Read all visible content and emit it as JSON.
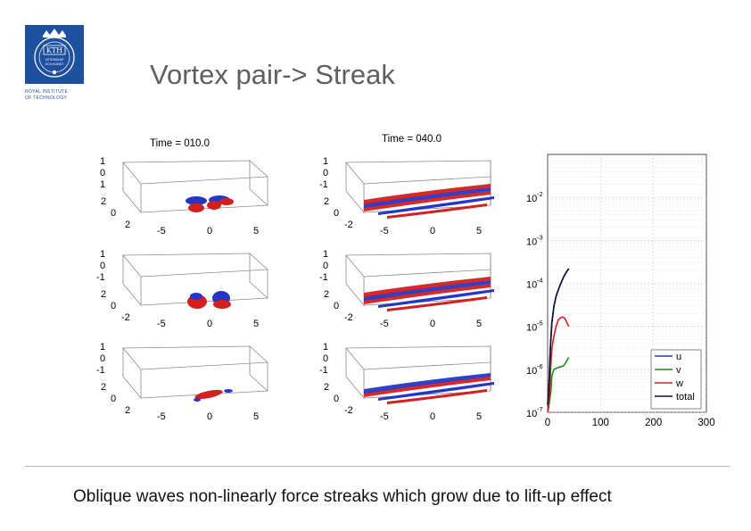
{
  "header": {
    "title": "Vortex pair-> Streak",
    "logo": {
      "abbr": "KTH",
      "seal_text": "VETENSKAP OCH KONST",
      "institute": "ROYAL INSTITUTE OF TECHNOLOGY",
      "color": "#1f4f9f"
    }
  },
  "figure": {
    "panels": [
      {
        "time_label": "Time = 010.0",
        "rows": [
          {
            "z_ticks": [
              "1",
              "0",
              "1"
            ],
            "y_ticks": [
              "2",
              "0",
              "2"
            ],
            "x_ticks": [
              "-5",
              "0",
              "5"
            ]
          },
          {
            "z_ticks": [
              "1",
              "0",
              "-1"
            ],
            "y_ticks": [
              "2",
              "0",
              "-2"
            ],
            "x_ticks": [
              "-5",
              "0",
              "5"
            ]
          },
          {
            "z_ticks": [
              "1",
              "0",
              "-1"
            ],
            "y_ticks": [
              "2",
              "0",
              "2"
            ],
            "x_ticks": [
              "-5",
              "0",
              "5"
            ]
          }
        ]
      },
      {
        "time_label": "Time = 040.0",
        "rows": [
          {
            "z_ticks": [
              "1",
              "0",
              "-1"
            ],
            "y_ticks": [
              "2",
              "0",
              "-2"
            ],
            "x_ticks": [
              "-5",
              "0",
              "5"
            ]
          },
          {
            "z_ticks": [
              "1",
              "0",
              "-1"
            ],
            "y_ticks": [
              "2",
              "0",
              "-2"
            ],
            "x_ticks": [
              "-5",
              "0",
              "5"
            ]
          },
          {
            "z_ticks": [
              "1",
              "0",
              "-1"
            ],
            "y_ticks": [
              "2",
              "0",
              "-2"
            ],
            "x_ticks": [
              "-5",
              "0",
              "5"
            ]
          }
        ]
      }
    ],
    "colors": {
      "red_isosurface": "#d41f1f",
      "blue_isosurface": "#2437c8"
    }
  },
  "chart_data": {
    "type": "line",
    "yscale": "log",
    "xlim": [
      0,
      300
    ],
    "ylim": [
      1e-07,
      0.1
    ],
    "x_ticks": [
      "0",
      "100",
      "200",
      "300"
    ],
    "y_ticks": [
      {
        "base": "10",
        "exp": "-2",
        "value": 0.01
      },
      {
        "base": "10",
        "exp": "-3",
        "value": 0.001
      },
      {
        "base": "10",
        "exp": "-4",
        "value": 0.0001
      },
      {
        "base": "10",
        "exp": "-5",
        "value": 1e-05
      },
      {
        "base": "10",
        "exp": "-6",
        "value": 1e-06
      },
      {
        "base": "10",
        "exp": "-7",
        "value": 1e-07
      }
    ],
    "grid": true,
    "legend_position": "bottom-right",
    "series": [
      {
        "name": "u",
        "color": "#1a3fb5",
        "x": [
          0,
          2,
          5,
          8,
          12,
          16,
          20,
          25,
          30,
          35,
          40
        ],
        "y": [
          1.5e-07,
          3e-07,
          3e-06,
          1.2e-05,
          3e-05,
          5e-05,
          7e-05,
          0.0001,
          0.00014,
          0.00018,
          0.00022
        ]
      },
      {
        "name": "v",
        "color": "#1b8a1b",
        "x": [
          0,
          2,
          4,
          6,
          8,
          12,
          20,
          30,
          35,
          40
        ],
        "y": [
          1e-07,
          1.3e-07,
          2e-07,
          3e-07,
          7e-07,
          1e-06,
          1.1e-06,
          1.2e-06,
          1.5e-06,
          1.9e-06
        ]
      },
      {
        "name": "w",
        "color": "#d42020",
        "x": [
          0,
          2,
          4,
          6,
          8,
          12,
          16,
          20,
          25,
          28,
          32,
          36,
          40
        ],
        "y": [
          1e-07,
          1.5e-07,
          4e-07,
          1.3e-06,
          3e-06,
          6e-06,
          1e-05,
          1.4e-05,
          1.6e-05,
          1.65e-05,
          1.55e-05,
          1.25e-05,
          1e-05
        ]
      },
      {
        "name": "total",
        "color": "#101030",
        "x": [
          0,
          2,
          5,
          8,
          12,
          16,
          20,
          25,
          30,
          35,
          40
        ],
        "y": [
          1.5e-07,
          3e-07,
          3e-06,
          1.2e-05,
          3e-05,
          5e-05,
          7e-05,
          0.0001,
          0.00014,
          0.00018,
          0.00022
        ]
      }
    ]
  },
  "caption": "Oblique waves non-linearly force streaks which grow due to lift-up effect"
}
